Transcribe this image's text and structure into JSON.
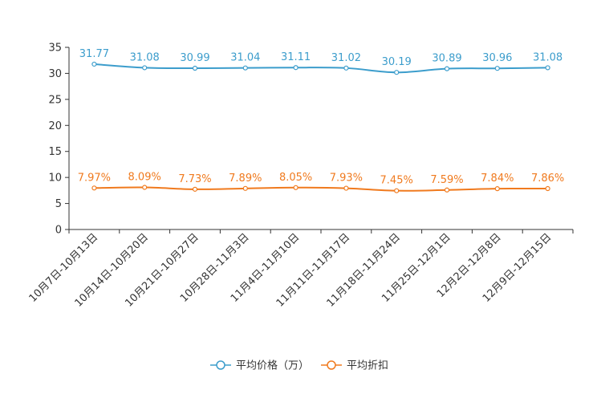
{
  "chart_data": {
    "type": "line",
    "title": "",
    "xlabel": "",
    "ylabel": "",
    "ylim": [
      0,
      35
    ],
    "yticks": [
      0,
      5,
      10,
      15,
      20,
      25,
      30,
      35
    ],
    "grid": false,
    "legend_position": "bottom-center",
    "categories": [
      "10月7日-10月13日",
      "10月14日-10月20日",
      "10月21日-10月27日",
      "10月28日-11月3日",
      "11月4日-11月10日",
      "11月11日-11月17日",
      "11月18日-11月24日",
      "11月25日-12月1日",
      "12月2日-12月8日",
      "12月9日-12月15日"
    ],
    "series": [
      {
        "name": "平均价格（万）",
        "color": "#3c9dcc",
        "values": [
          31.77,
          31.08,
          30.99,
          31.04,
          31.11,
          31.02,
          30.19,
          30.89,
          30.96,
          31.08
        ],
        "labels": [
          "31.77",
          "31.08",
          "30.99",
          "31.04",
          "31.11",
          "31.02",
          "30.19",
          "30.89",
          "30.96",
          "31.08"
        ]
      },
      {
        "name": "平均折扣",
        "color": "#f07a1e",
        "values": [
          7.97,
          8.09,
          7.73,
          7.89,
          8.05,
          7.93,
          7.45,
          7.59,
          7.84,
          7.86
        ],
        "labels": [
          "7.97%",
          "8.09%",
          "7.73%",
          "7.89%",
          "8.05%",
          "7.93%",
          "7.45%",
          "7.59%",
          "7.84%",
          "7.86%"
        ]
      }
    ]
  }
}
